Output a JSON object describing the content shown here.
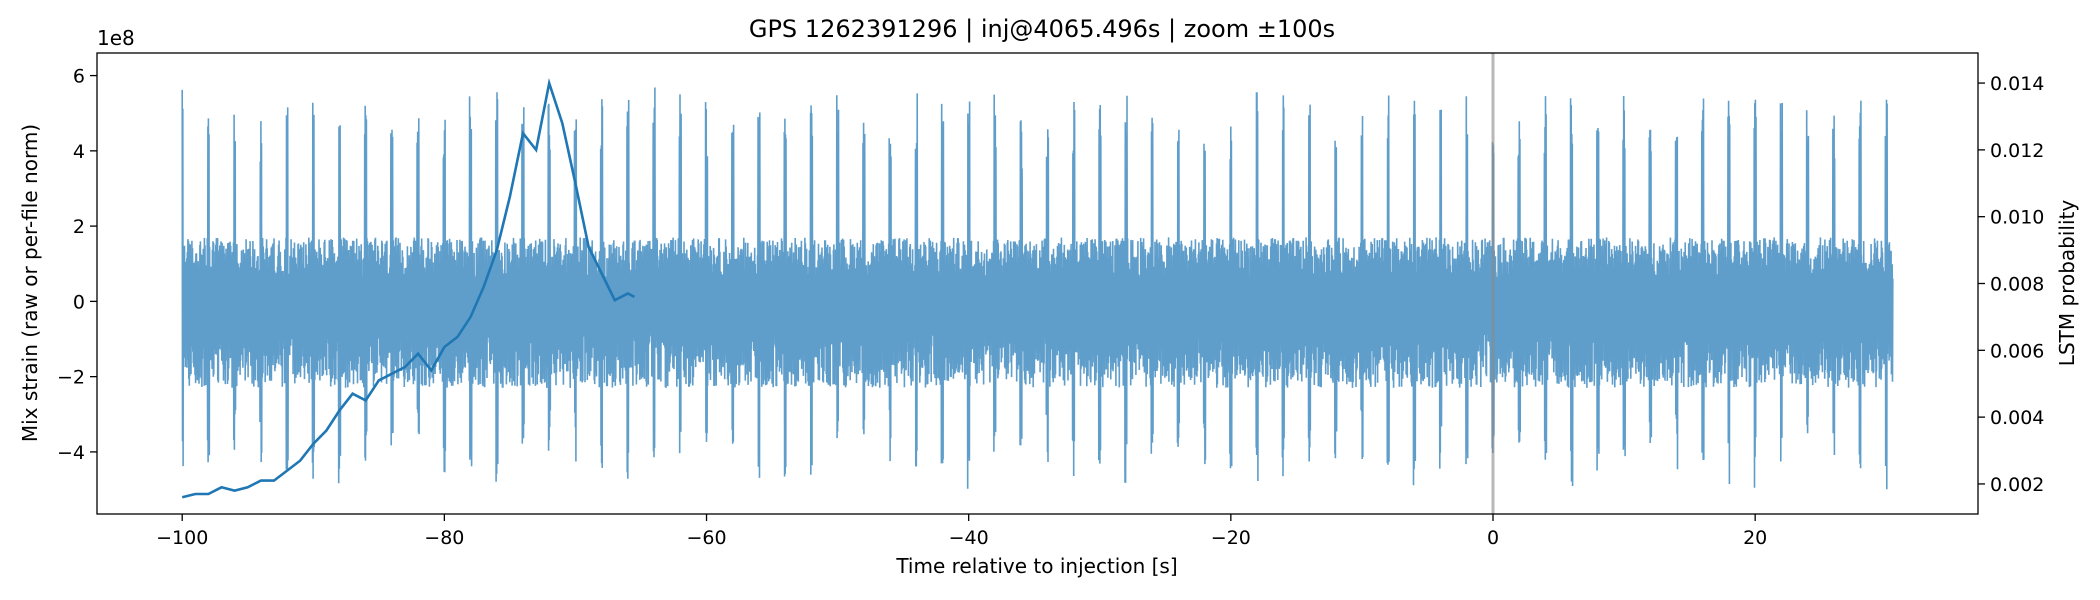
{
  "chart_data": {
    "type": "line",
    "title": "GPS 1262391296 | inj@4065.496s | zoom ±100s",
    "xlabel": "Time relative to injection [s]",
    "ylabel_left": "Mix strain (raw or per-file norm)",
    "ylabel_right": "LSTM probability",
    "left_axis_multiplier": "1e8",
    "xlim": [
      -106.5,
      37.0
    ],
    "ylim_left": [
      -5.65,
      6.6
    ],
    "ylim_right": [
      0.0011,
      0.0149
    ],
    "x_ticks": [
      -100,
      -80,
      -60,
      -40,
      -20,
      0,
      20
    ],
    "x_tick_labels": [
      "−100",
      "−80",
      "−60",
      "−40",
      "−20",
      "0",
      "20"
    ],
    "y_left_ticks": [
      -4,
      -2,
      0,
      2,
      4,
      6
    ],
    "y_left_tick_labels": [
      "−4",
      "−2",
      "0",
      "2",
      "4",
      "6"
    ],
    "y_right_ticks": [
      0.002,
      0.004,
      0.006,
      0.008,
      0.01,
      0.012,
      0.014
    ],
    "y_right_tick_labels": [
      "0.002",
      "0.004",
      "0.006",
      "0.008",
      "0.010",
      "0.012",
      "0.014"
    ],
    "grid": false,
    "injection_marker_x": 0,
    "series": [
      {
        "axis": "left",
        "color": "#5f9ecb",
        "x_range": [
          -100,
          30.5
        ],
        "typical_band": [
          -2.3,
          1.7
        ],
        "burst_period_s": 2.0,
        "burst_peaks_upper": [
          5.7,
          5.3,
          4.6,
          5.0,
          5.6,
          5.5
        ],
        "burst_peaks_lower": [
          -4.4,
          -4.2,
          -3.8,
          -4.6,
          -4.9,
          -5.0
        ],
        "description_values": [
          5.7,
          -4.9
        ]
      },
      {
        "axis": "right",
        "color": "#1f77b4",
        "x": [
          -100,
          -99,
          -98,
          -97,
          -96,
          -95,
          -94,
          -93,
          -92,
          -91,
          -90,
          -89,
          -88,
          -87,
          -86,
          -85,
          -84,
          -83,
          -82,
          -81,
          -80,
          -79,
          -78,
          -77,
          -76,
          -75,
          -74,
          -73,
          -72,
          -71,
          -70,
          -69,
          -68,
          -67,
          -66,
          -65.5
        ],
        "values": [
          0.0016,
          0.0017,
          0.0017,
          0.0019,
          0.0018,
          0.0019,
          0.0021,
          0.0021,
          0.0024,
          0.0027,
          0.0032,
          0.0036,
          0.0042,
          0.0047,
          0.0045,
          0.0051,
          0.0053,
          0.0055,
          0.0059,
          0.0054,
          0.0061,
          0.0064,
          0.007,
          0.0079,
          0.009,
          0.0106,
          0.0125,
          0.012,
          0.014,
          0.0128,
          0.011,
          0.0091,
          0.0083,
          0.0075,
          0.0077,
          0.0076
        ]
      }
    ]
  }
}
